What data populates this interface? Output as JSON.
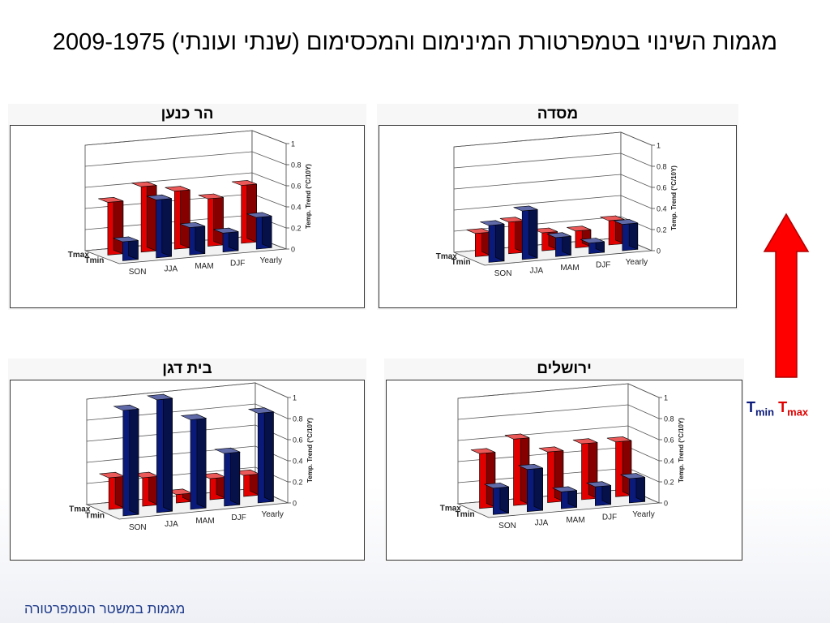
{
  "title": "מגמות השינוי בטמפרטורת המינימום והמכסימום (שנתי ועונתי) 2009-1975",
  "footer": "מגמות במשטר הטמפרטורה",
  "legend": {
    "tmin_main": "T",
    "tmin_sub": "min",
    "tmax_main": "T",
    "tmax_sub": "max",
    "tmin_color": "#0a1a7a",
    "tmax_color": "#e00000"
  },
  "arrow_color": "#ff0000",
  "chart_data": [
    {
      "type": "bar",
      "title": "הר כנען",
      "categories": [
        "SON",
        "JJA",
        "MAM",
        "DJF",
        "Yearly"
      ],
      "series": [
        {
          "name": "Tmax",
          "values": [
            0.5,
            0.62,
            0.55,
            0.45,
            0.55
          ]
        },
        {
          "name": "Tmin",
          "values": [
            0.18,
            0.55,
            0.26,
            0.18,
            0.3
          ]
        }
      ],
      "ylabel": "Temp. Trend (°C/10Y)",
      "ylim": [
        0,
        1
      ],
      "yticks": [
        "0",
        "0.2",
        "0.4",
        "0.6",
        "0.8",
        "1"
      ]
    },
    {
      "type": "bar",
      "title": "מסדה",
      "categories": [
        "SON",
        "JJA",
        "MAM",
        "DJF",
        "Yearly"
      ],
      "series": [
        {
          "name": "Tmax",
          "values": [
            0.22,
            0.3,
            0.17,
            0.16,
            0.23
          ]
        },
        {
          "name": "Tmin",
          "values": [
            0.35,
            0.46,
            0.18,
            0.1,
            0.25
          ]
        }
      ],
      "ylabel": "Temp. Trend (°C/10Y)",
      "ylim": [
        0,
        1
      ],
      "yticks": [
        "0",
        "0.2",
        "0.4",
        "0.6",
        "0.8",
        "1"
      ]
    },
    {
      "type": "bar",
      "title": "בית דגן",
      "categories": [
        "SON",
        "JJA",
        "MAM",
        "DJF",
        "Yearly"
      ],
      "series": [
        {
          "name": "Tmax",
          "values": [
            0.3,
            0.27,
            0.08,
            0.2,
            0.2
          ]
        },
        {
          "name": "Tmin",
          "values": [
            1.0,
            1.07,
            0.85,
            0.5,
            0.85
          ]
        }
      ],
      "ylabel": "Temp. Trend (°C/10Y)",
      "ylim": [
        0,
        1
      ],
      "yticks": [
        "0",
        "0.2",
        "0.4",
        "0.6",
        "0.8",
        "1"
      ]
    },
    {
      "type": "bar",
      "title": "ירושלים",
      "categories": [
        "SON",
        "JJA",
        "MAM",
        "DJF",
        "Yearly"
      ],
      "series": [
        {
          "name": "Tmax",
          "values": [
            0.52,
            0.63,
            0.48,
            0.53,
            0.52
          ]
        },
        {
          "name": "Tmin",
          "values": [
            0.25,
            0.4,
            0.16,
            0.18,
            0.23
          ]
        }
      ],
      "ylabel": "Temp. Trend (°C/10Y)",
      "ylim": [
        0,
        1
      ],
      "yticks": [
        "0",
        "0.2",
        "0.4",
        "0.6",
        "0.8",
        "1"
      ]
    }
  ]
}
